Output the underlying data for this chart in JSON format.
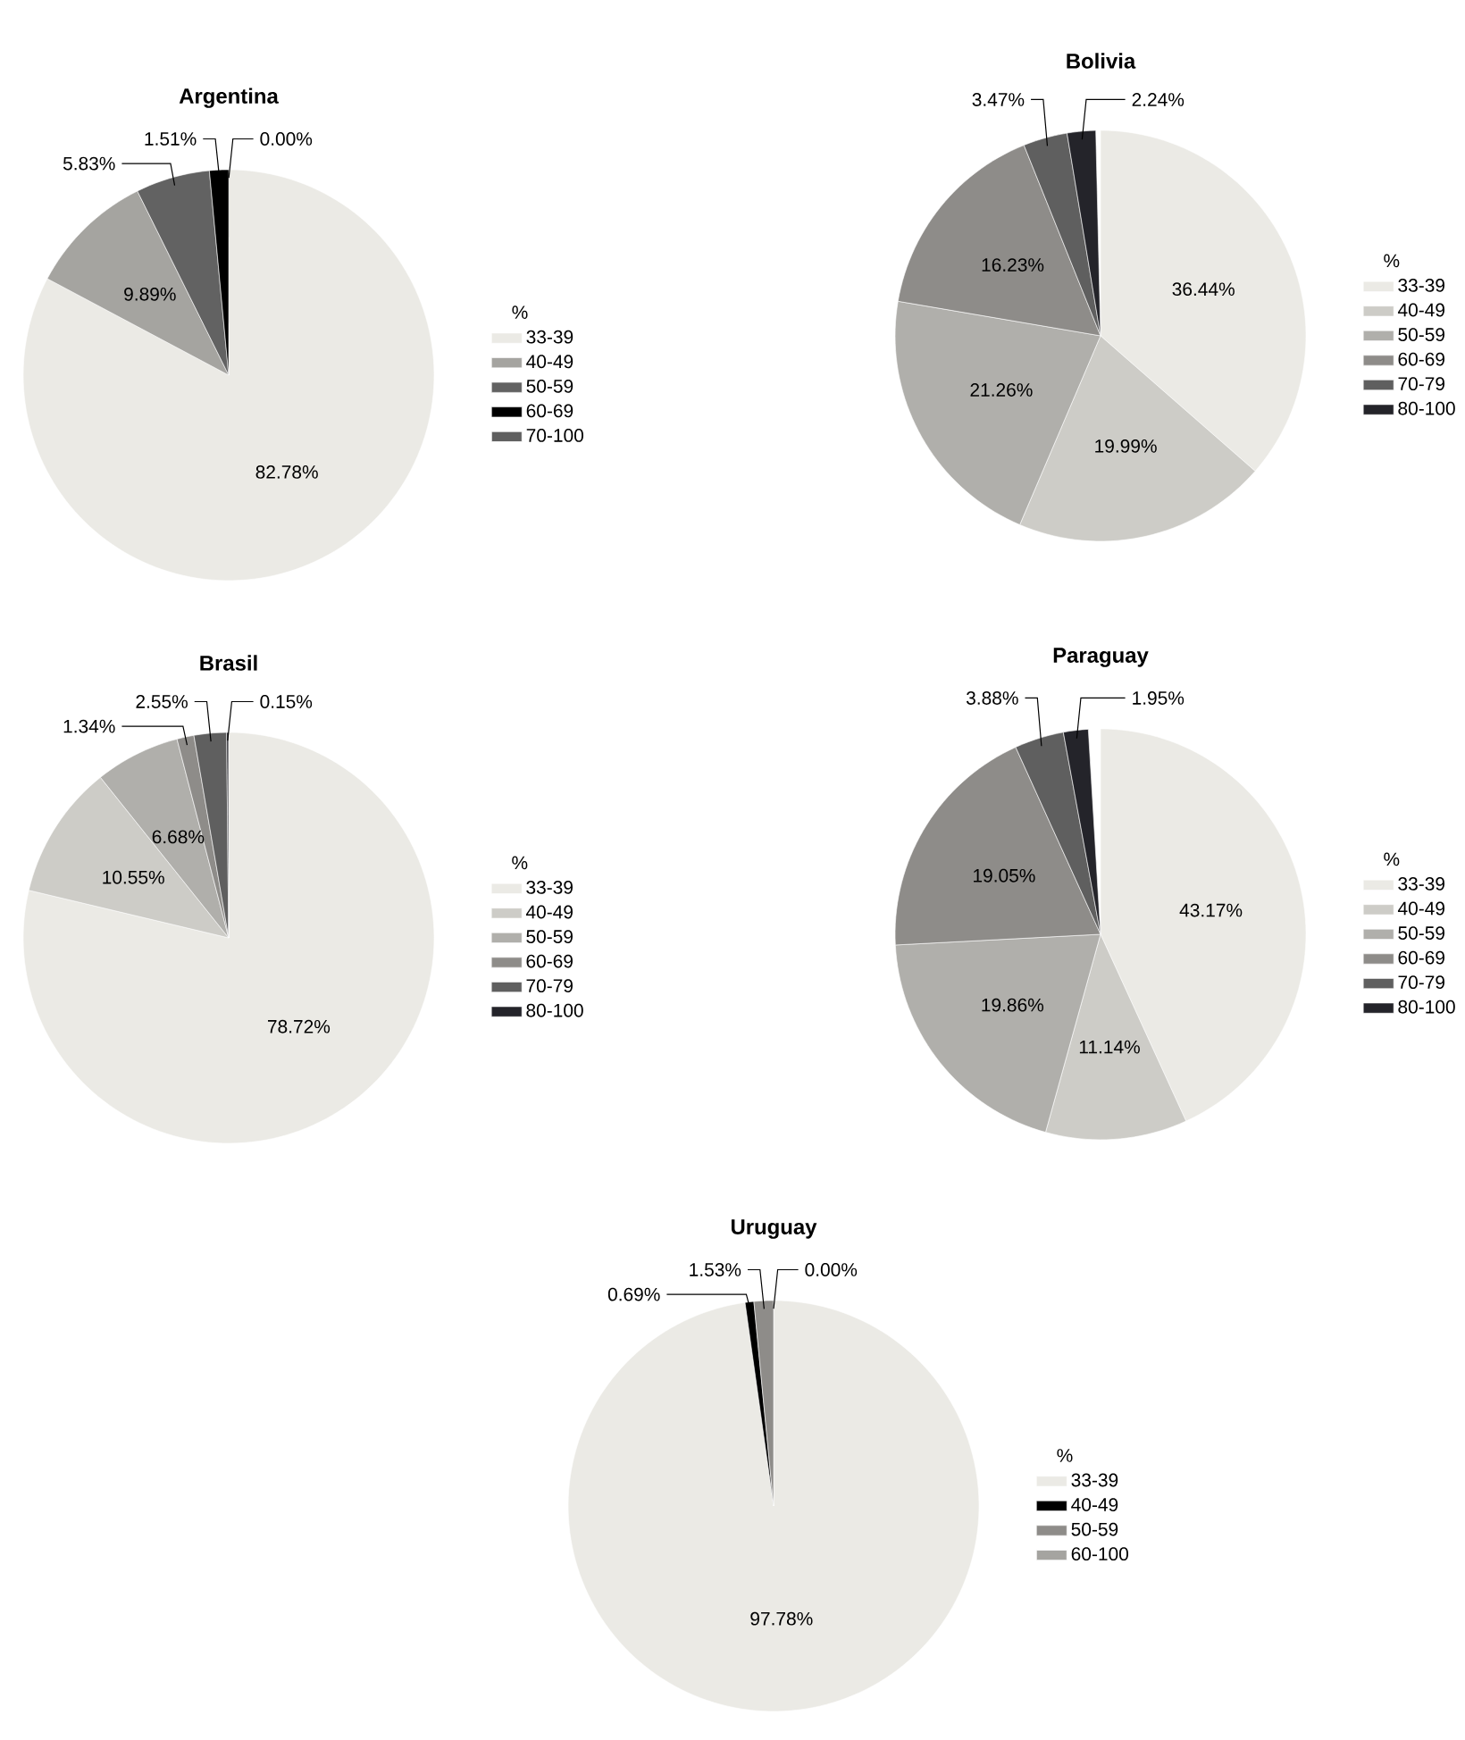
{
  "chart_data": [
    {
      "type": "pie",
      "title": "Argentina",
      "legend_title": "%",
      "legend": "right",
      "categories": [
        "33-39",
        "40-49",
        "50-59",
        "60-69",
        "70-100"
      ],
      "values": [
        82.78,
        9.89,
        5.83,
        1.51,
        0.0
      ],
      "value_labels": [
        "82.78%",
        "9.89%",
        "5.83%",
        "1.51%",
        "0.00%"
      ],
      "colors": [
        "#ebeae5",
        "#a5a4a0",
        "#626262",
        "#000000",
        "#5f5f5f"
      ]
    },
    {
      "type": "pie",
      "title": "Bolivia",
      "legend_title": "%",
      "legend": "right",
      "categories": [
        "33-39",
        "40-49",
        "50-59",
        "60-69",
        "70-79",
        "80-100"
      ],
      "values": [
        36.44,
        19.99,
        21.26,
        16.23,
        3.47,
        2.24
      ],
      "value_labels": [
        "36.44%",
        "19.99%",
        "21.26%",
        "16.23%",
        "3.47%",
        "2.24%"
      ],
      "colors": [
        "#ebeae5",
        "#cdccc7",
        "#b0afab",
        "#8e8c89",
        "#5f5f5f",
        "#24242a"
      ]
    },
    {
      "type": "pie",
      "title": "Brasil",
      "legend_title": "%",
      "legend": "right",
      "categories": [
        "33-39",
        "40-49",
        "50-59",
        "60-69",
        "70-79",
        "80-100"
      ],
      "values": [
        78.72,
        10.55,
        6.68,
        1.34,
        2.55,
        0.15
      ],
      "value_labels": [
        "78.72%",
        "10.55%",
        "6.68%",
        "1.34%",
        "2.55%",
        "0.15%"
      ],
      "colors": [
        "#ebeae5",
        "#cdccc7",
        "#b0afab",
        "#8e8c89",
        "#5f5f5f",
        "#24242a"
      ]
    },
    {
      "type": "pie",
      "title": "Paraguay",
      "legend_title": "%",
      "legend": "right",
      "categories": [
        "33-39",
        "40-49",
        "50-59",
        "60-69",
        "70-79",
        "80-100"
      ],
      "values": [
        43.17,
        11.14,
        19.86,
        19.05,
        3.88,
        1.95
      ],
      "value_labels": [
        "43.17%",
        "11.14%",
        "19.86%",
        "19.05%",
        "3.88%",
        "1.95%"
      ],
      "colors": [
        "#ebeae5",
        "#cdccc7",
        "#b0afab",
        "#8e8c89",
        "#5f5f5f",
        "#24242a"
      ]
    },
    {
      "type": "pie",
      "title": "Uruguay",
      "legend_title": "%",
      "legend": "right",
      "categories": [
        "33-39",
        "40-49",
        "50-59",
        "60-100"
      ],
      "values": [
        97.78,
        0.69,
        1.53,
        0.0
      ],
      "value_labels": [
        "97.78%",
        "0.69%",
        "1.53%",
        "0.00%"
      ],
      "colors": [
        "#ebeae5",
        "#000000",
        "#8e8c89",
        "#a5a4a0"
      ]
    }
  ]
}
